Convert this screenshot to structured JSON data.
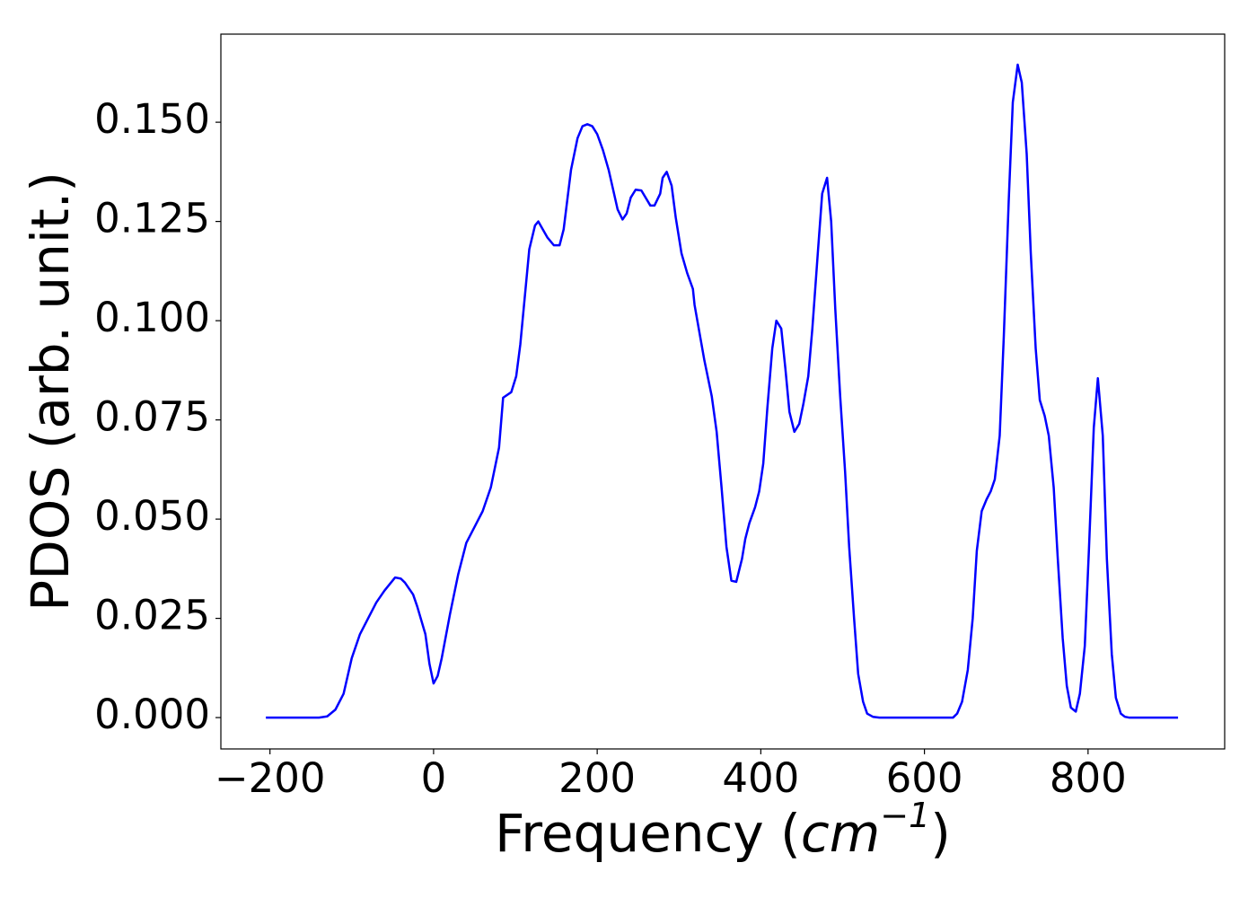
{
  "chart_data": {
    "type": "line",
    "xlabel": [
      "Frequency (",
      "cm",
      "−1",
      ")"
    ],
    "ylabel": "PDOS (arb. unit.)",
    "xlim": [
      -260,
      967
    ],
    "ylim": [
      -0.0079,
      0.1722
    ],
    "xticks": [
      {
        "value": -200,
        "label": "−200"
      },
      0,
      200,
      400,
      600,
      800
    ],
    "yticks": [
      {
        "value": 0,
        "label": "0.000"
      },
      {
        "value": 0.025,
        "label": "0.025"
      },
      {
        "value": 0.05,
        "label": "0.050"
      },
      {
        "value": 0.075,
        "label": "0.075"
      },
      {
        "value": 0.1,
        "label": "0.100"
      },
      {
        "value": 0.125,
        "label": "0.125"
      },
      {
        "value": 0.15,
        "label": "0.150"
      }
    ],
    "series": [
      {
        "color": "#0000ff",
        "x": [
          -205,
          -150,
          -140,
          -130,
          -120,
          -110,
          -100,
          -90,
          -80,
          -70,
          -60,
          -47,
          -40,
          -35,
          -25,
          -20,
          -10,
          -5,
          0,
          5,
          10,
          20,
          30,
          40,
          50,
          60,
          70,
          80,
          85,
          95,
          101,
          106,
          117,
          124,
          128,
          139,
          147,
          154,
          159,
          168,
          176,
          182,
          188,
          194,
          200,
          207,
          214,
          225,
          231,
          236,
          241,
          247,
          254,
          265,
          270,
          277,
          280,
          285,
          291,
          296,
          303,
          310,
          317,
          319,
          331,
          340,
          346,
          352,
          358,
          364,
          370,
          377,
          381,
          386,
          393,
          398,
          403,
          408,
          414,
          419,
          425,
          430,
          435,
          441,
          447,
          452,
          458,
          463,
          470,
          475,
          481,
          486,
          491,
          497,
          503,
          508,
          514,
          519,
          525,
          530,
          537,
          545,
          635,
          640,
          646,
          653,
          659,
          664,
          670,
          676,
          681,
          686,
          692,
          697,
          703,
          708,
          714,
          719,
          725,
          730,
          736,
          741,
          747,
          752,
          758,
          763,
          769,
          774,
          779,
          785,
          790,
          796,
          801,
          807,
          812,
          818,
          823,
          829,
          834,
          840,
          845,
          850,
          910
        ],
        "values": [
          0,
          0,
          0,
          0.0003,
          0.002,
          0.006,
          0.015,
          0.021,
          0.025,
          0.029,
          0.032,
          0.0353,
          0.035,
          0.034,
          0.031,
          0.028,
          0.021,
          0.0135,
          0.0086,
          0.0105,
          0.015,
          0.026,
          0.036,
          0.044,
          0.048,
          0.052,
          0.058,
          0.068,
          0.0806,
          0.082,
          0.086,
          0.094,
          0.118,
          0.124,
          0.125,
          0.121,
          0.119,
          0.119,
          0.123,
          0.138,
          0.146,
          0.149,
          0.1495,
          0.149,
          0.147,
          0.143,
          0.138,
          0.128,
          0.1255,
          0.127,
          0.131,
          0.133,
          0.1328,
          0.129,
          0.129,
          0.132,
          0.136,
          0.1375,
          0.134,
          0.126,
          0.117,
          0.112,
          0.108,
          0.104,
          0.09,
          0.081,
          0.072,
          0.058,
          0.043,
          0.0345,
          0.0342,
          0.04,
          0.045,
          0.049,
          0.053,
          0.057,
          0.064,
          0.078,
          0.093,
          0.1,
          0.098,
          0.088,
          0.077,
          0.072,
          0.074,
          0.079,
          0.086,
          0.098,
          0.118,
          0.132,
          0.136,
          0.125,
          0.103,
          0.081,
          0.062,
          0.043,
          0.025,
          0.011,
          0.004,
          0.001,
          0.0002,
          0,
          0,
          0.001,
          0.004,
          0.012,
          0.025,
          0.042,
          0.052,
          0.055,
          0.057,
          0.06,
          0.071,
          0.096,
          0.13,
          0.155,
          0.1645,
          0.16,
          0.142,
          0.117,
          0.093,
          0.08,
          0.076,
          0.071,
          0.058,
          0.04,
          0.02,
          0.008,
          0.0025,
          0.0015,
          0.006,
          0.018,
          0.042,
          0.073,
          0.0855,
          0.071,
          0.04,
          0.016,
          0.005,
          0.001,
          0.0002,
          0,
          0
        ]
      }
    ]
  }
}
